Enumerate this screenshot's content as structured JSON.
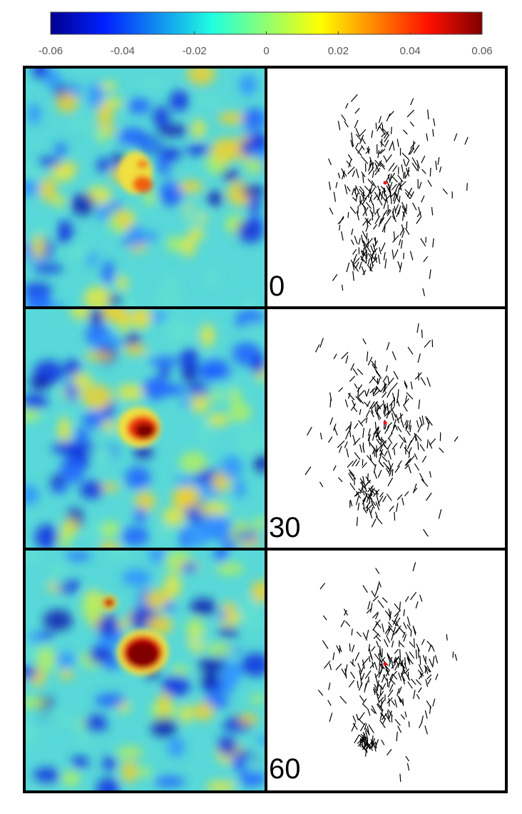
{
  "colorbar": {
    "lim": [
      -0.06,
      0.06
    ],
    "ticks": [
      -0.06,
      -0.04,
      -0.02,
      0,
      0.02,
      0.04,
      0.06
    ]
  },
  "panels": [
    {
      "label": "0"
    },
    {
      "label": "30"
    },
    {
      "label": "60"
    }
  ]
}
